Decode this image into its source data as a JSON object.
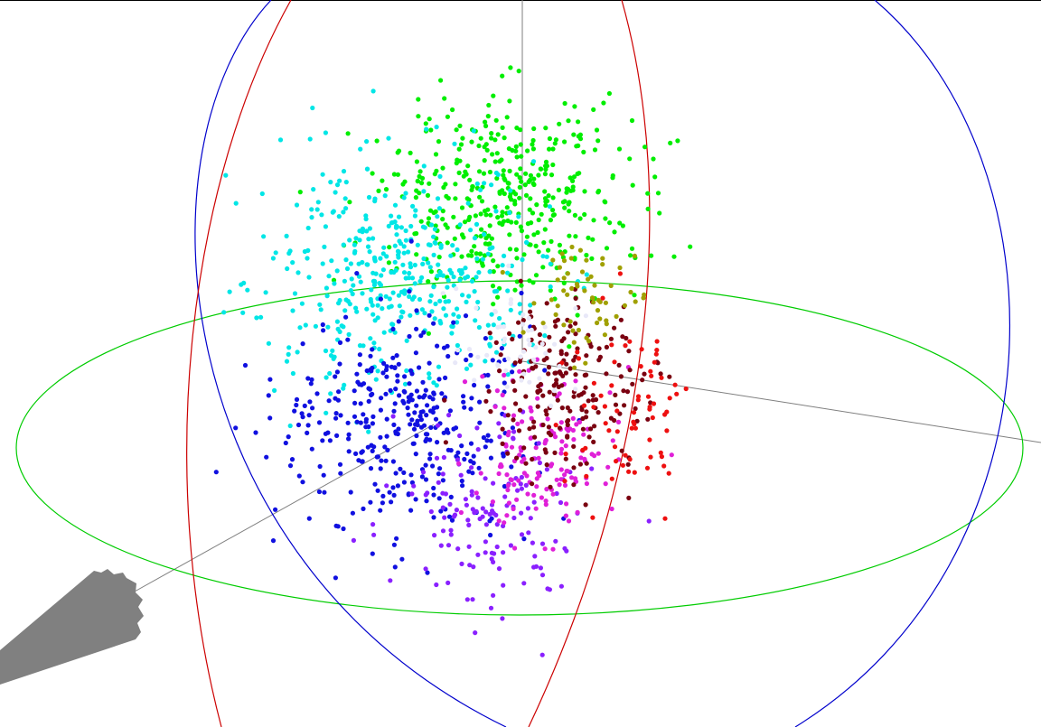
{
  "chart_data": {
    "type": "scatter",
    "title": "",
    "xlabel": "",
    "ylabel": "",
    "zlabel": "",
    "grid": false,
    "legend": "none",
    "coordinate_system": "3d-sphere",
    "colors": {
      "background": "#ffffff",
      "axis_line": "#7f7f7f",
      "equator_ring": "#00cc00",
      "meridian_ring_a": "#0000cc",
      "meridian_ring_b": "#cc0000",
      "cone": "#808080"
    },
    "series": [
      {
        "hue": "green",
        "color": "#00ee00",
        "count": 420
      },
      {
        "hue": "cyan",
        "color": "#00e6e6",
        "count": 420
      },
      {
        "hue": "blue",
        "color": "#1010e0",
        "count": 360
      },
      {
        "hue": "violet",
        "color": "#8a20ff",
        "count": 140
      },
      {
        "hue": "magenta",
        "color": "#e020d8",
        "count": 140
      },
      {
        "hue": "maroon",
        "color": "#7a0010",
        "count": 200
      },
      {
        "hue": "red",
        "color": "#ee1010",
        "count": 70
      },
      {
        "hue": "olive",
        "color": "#a0a000",
        "count": 60
      },
      {
        "hue": "white",
        "color": "#e8e8f8",
        "count": 50
      }
    ]
  }
}
